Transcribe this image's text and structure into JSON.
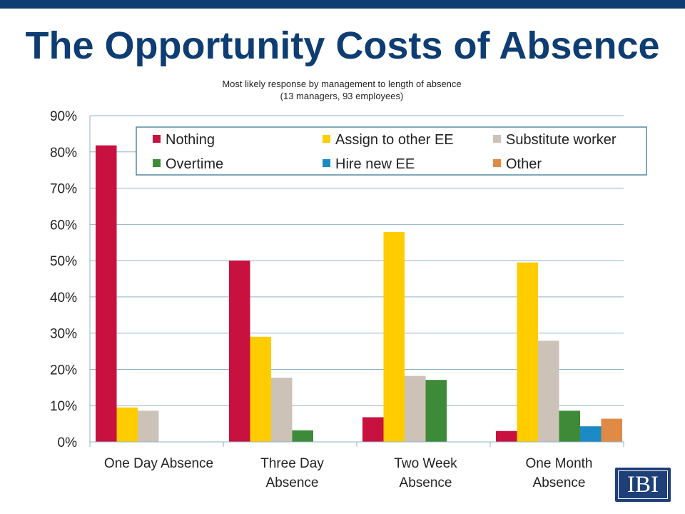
{
  "slide": {
    "title": "The Opportunity Costs of Absence",
    "accent_color": "#0e3d73",
    "logo_text": "IBI"
  },
  "chart_data": {
    "type": "bar",
    "title": "Most likely response by management to length of absence",
    "subtitle": "(13 managers, 93 employees)",
    "xlabel": "",
    "ylabel": "",
    "ylim": [
      0,
      90
    ],
    "yticks": [
      "0%",
      "10%",
      "20%",
      "30%",
      "40%",
      "50%",
      "60%",
      "70%",
      "80%",
      "90%"
    ],
    "grid": true,
    "legend_position": "top",
    "categories": [
      [
        "One Day Absence"
      ],
      [
        "Three Day",
        "Absence"
      ],
      [
        "Two Week",
        "Absence"
      ],
      [
        "One Month",
        "Absence"
      ]
    ],
    "series": [
      {
        "name": "Nothing",
        "color": "#c8113f",
        "values": [
          81.8,
          50.0,
          6.8,
          3.0
        ]
      },
      {
        "name": "Assign to other EE",
        "color": "#ffcc00",
        "values": [
          9.5,
          29.0,
          57.9,
          49.5
        ]
      },
      {
        "name": "Substitute worker",
        "color": "#cdc2b8",
        "values": [
          8.6,
          17.7,
          18.2,
          27.9
        ]
      },
      {
        "name": "Overtime",
        "color": "#3d8a38",
        "values": [
          0,
          3.2,
          17.1,
          8.6
        ]
      },
      {
        "name": "Hire new EE",
        "color": "#1c8ac4",
        "values": [
          0,
          0,
          0,
          4.3
        ]
      },
      {
        "name": "Other",
        "color": "#e08a45",
        "values": [
          0,
          0,
          0,
          6.4
        ]
      }
    ]
  }
}
